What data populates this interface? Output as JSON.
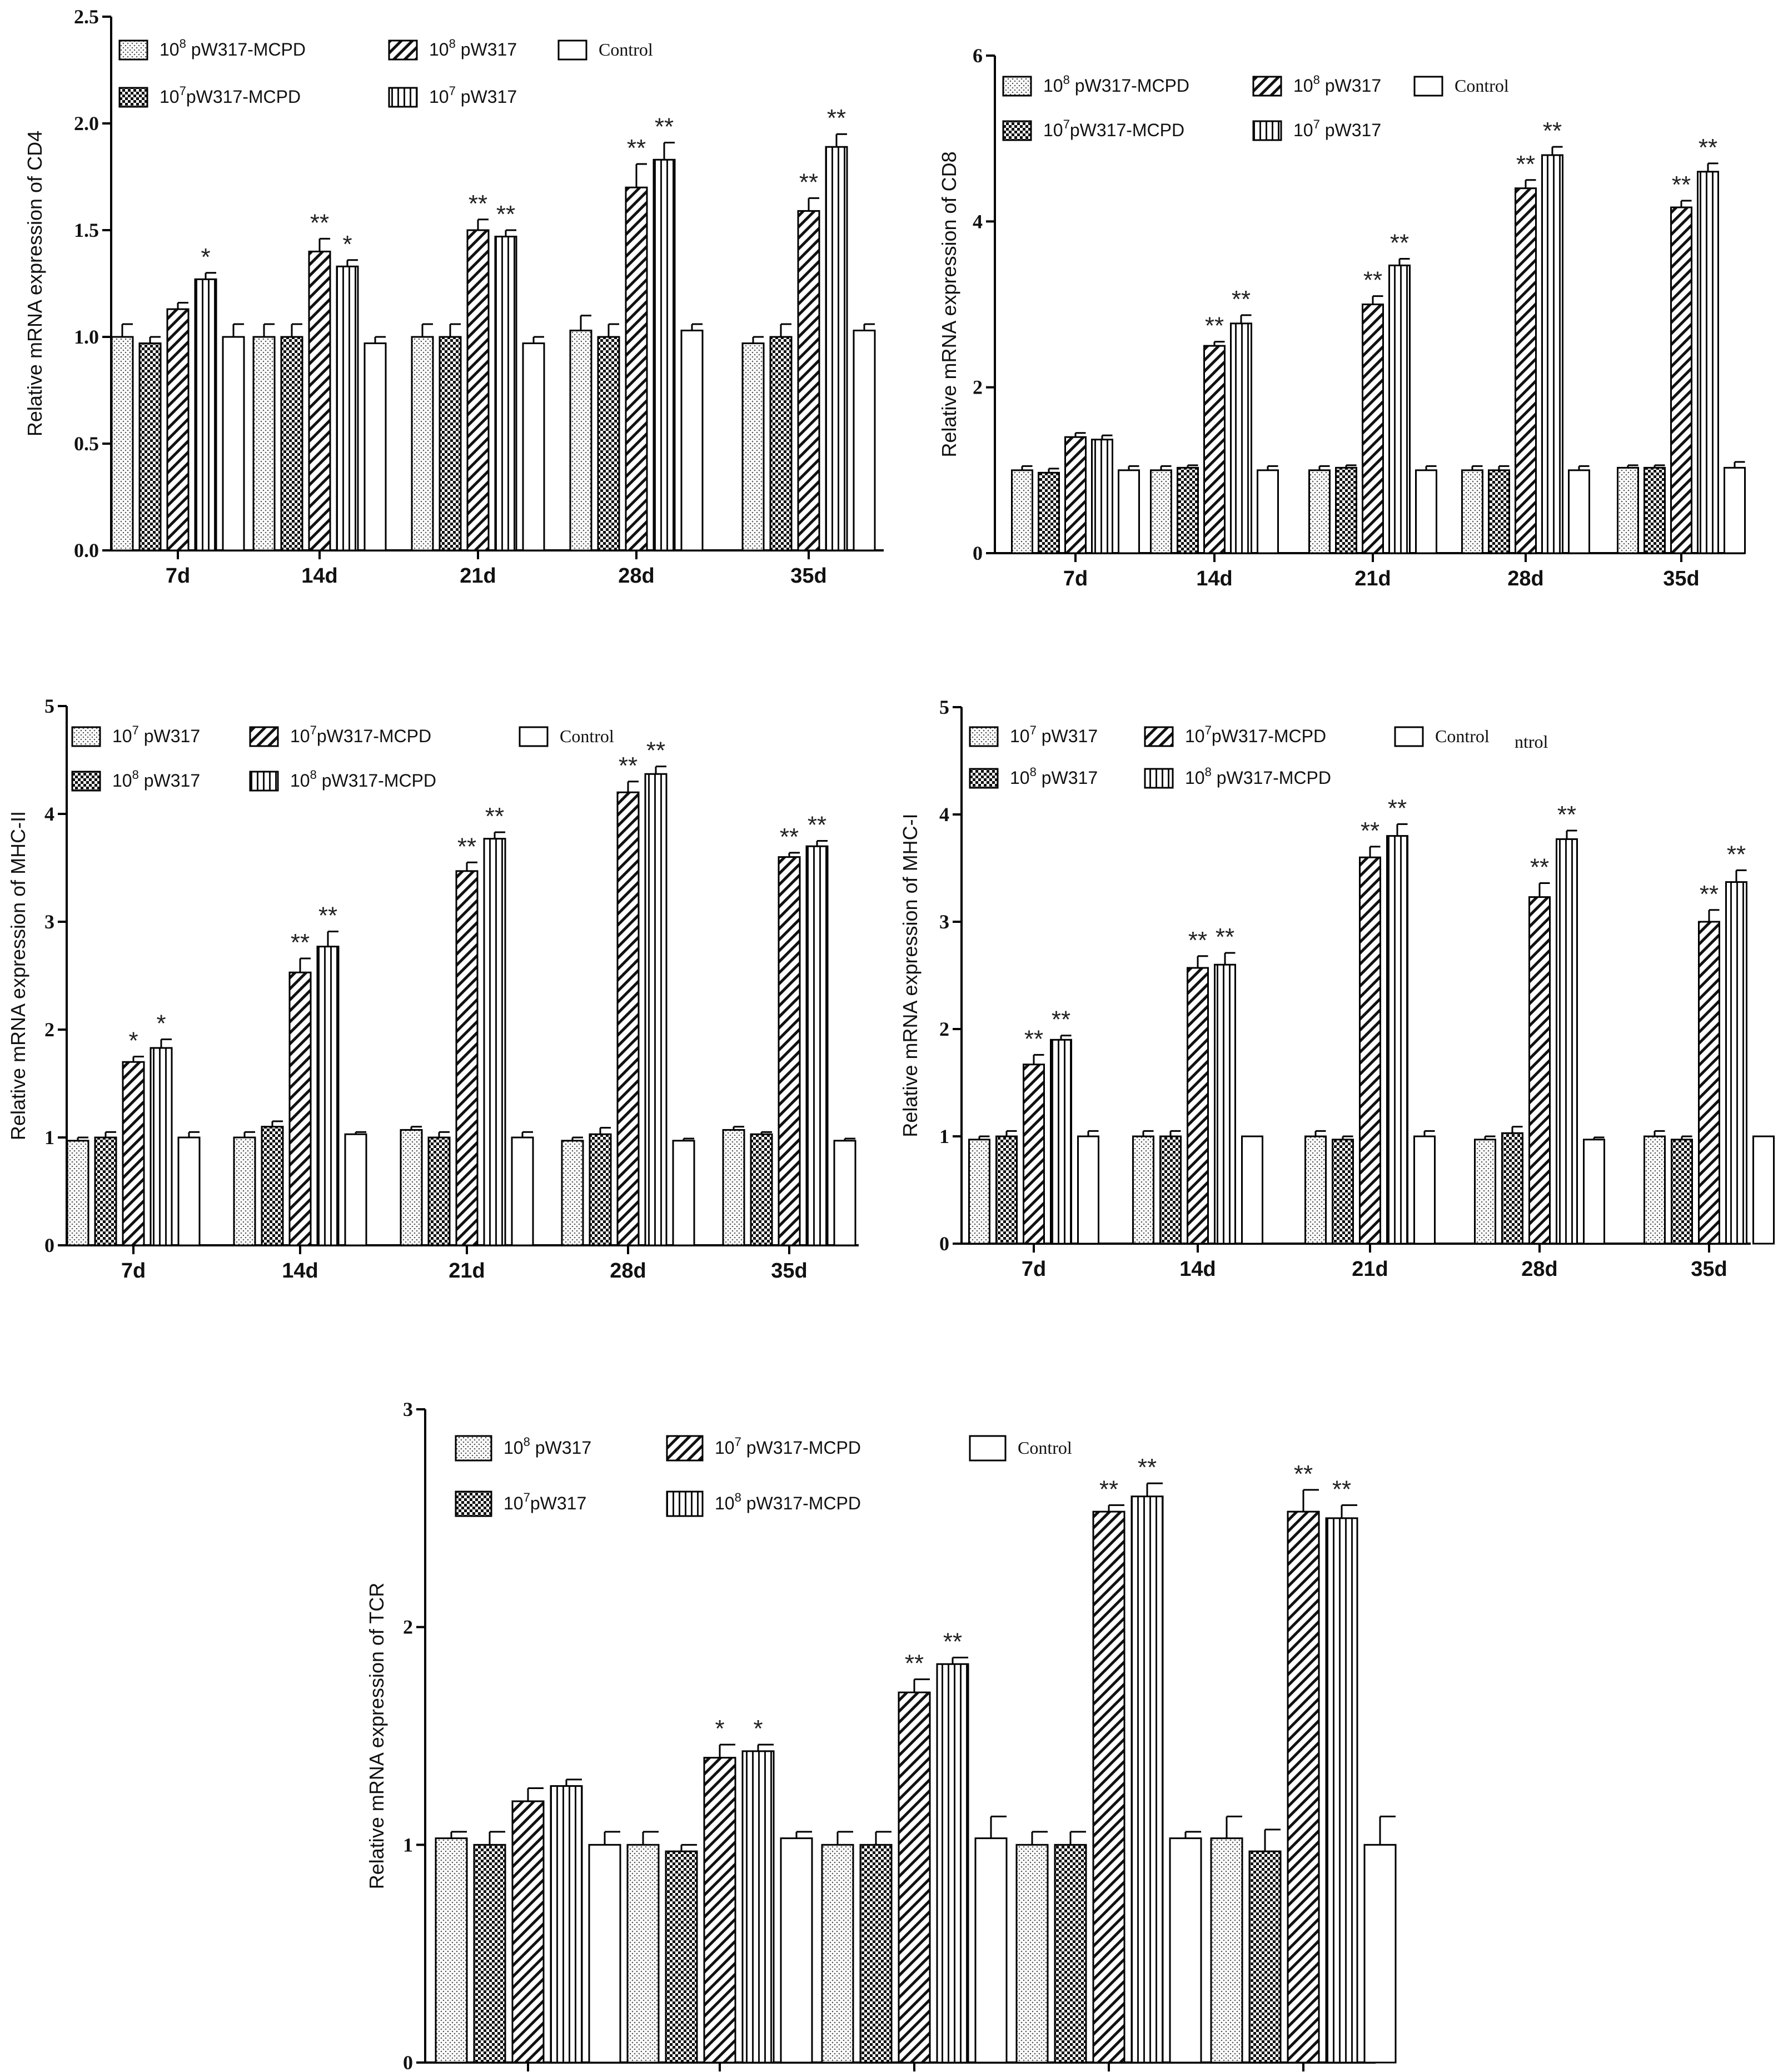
{
  "chart_data": [
    {
      "type": "bar",
      "id": "cd4",
      "ylabel": "Relative mRNA expression of CD4",
      "ylim": [
        0,
        2.5
      ],
      "yticks": [
        "0.0",
        "0.5",
        "1.0",
        "1.5",
        "2.0",
        "2.5"
      ],
      "categories": [
        "7d",
        "14d",
        "21d",
        "28d",
        "35d"
      ],
      "legend": [
        {
          "pre": "10",
          "sup": "8",
          "post": " pW317-MCPD",
          "pattern": "dots"
        },
        {
          "pre": "10",
          "sup": "7",
          "post": "pW317-MCPD",
          "pattern": "check"
        },
        {
          "pre": "10",
          "sup": "8",
          "post": " pW317",
          "pattern": "diag"
        },
        {
          "pre": "10",
          "sup": "7",
          "post": " pW317",
          "pattern": "vert"
        },
        {
          "pre": "Control",
          "sup": "",
          "post": "",
          "pattern": "plain",
          "serif": true
        }
      ],
      "series": [
        {
          "name": "10^8 pW317-MCPD",
          "values": [
            1.0,
            1.0,
            1.0,
            1.03,
            0.97
          ],
          "errors": [
            0.06,
            0.06,
            0.06,
            0.07,
            0.03
          ],
          "sig": [
            "",
            "",
            "",
            "",
            ""
          ]
        },
        {
          "name": "10^7 pW317-MCPD",
          "values": [
            0.97,
            1.0,
            1.0,
            1.0,
            1.0
          ],
          "errors": [
            0.03,
            0.06,
            0.06,
            0.06,
            0.06
          ],
          "sig": [
            "",
            "",
            "",
            "",
            ""
          ]
        },
        {
          "name": "10^8 pW317",
          "values": [
            1.13,
            1.4,
            1.5,
            1.7,
            1.59
          ],
          "errors": [
            0.03,
            0.06,
            0.05,
            0.11,
            0.06
          ],
          "sig": [
            "",
            "**",
            "**",
            "**",
            "**"
          ]
        },
        {
          "name": "10^7 pW317",
          "values": [
            1.27,
            1.33,
            1.47,
            1.83,
            1.89
          ],
          "errors": [
            0.03,
            0.03,
            0.03,
            0.08,
            0.06
          ],
          "sig": [
            "*",
            "*",
            "**",
            "**",
            "**"
          ]
        },
        {
          "name": "Control",
          "values": [
            1.0,
            0.97,
            0.97,
            1.03,
            1.03
          ],
          "errors": [
            0.06,
            0.03,
            0.03,
            0.03,
            0.03
          ],
          "sig": [
            "",
            "",
            "",
            "",
            ""
          ]
        }
      ]
    },
    {
      "type": "bar",
      "id": "cd8",
      "ylabel": "Relative mRNA expression of CD8",
      "ylim": [
        0,
        6
      ],
      "yticks": [
        "0",
        "2",
        "4",
        "6"
      ],
      "categories": [
        "7d",
        "14d",
        "21d",
        "28d",
        "35d"
      ],
      "legend": [
        {
          "pre": "10",
          "sup": "8",
          "post": " pW317-MCPD",
          "pattern": "dots"
        },
        {
          "pre": "10",
          "sup": "7",
          "post": "pW317-MCPD",
          "pattern": "check"
        },
        {
          "pre": "10",
          "sup": "8",
          "post": " pW317",
          "pattern": "diag"
        },
        {
          "pre": "10",
          "sup": "7",
          "post": " pW317",
          "pattern": "vert"
        },
        {
          "pre": "Control",
          "sup": "",
          "post": "",
          "pattern": "plain",
          "serif": true
        }
      ],
      "series": [
        {
          "name": "10^8 pW317-MCPD",
          "values": [
            1.0,
            1.0,
            1.0,
            1.0,
            1.03
          ],
          "errors": [
            0.05,
            0.05,
            0.05,
            0.05,
            0.03
          ],
          "sig": [
            "",
            "",
            "",
            "",
            ""
          ]
        },
        {
          "name": "10^7 pW317-MCPD",
          "values": [
            0.97,
            1.03,
            1.03,
            1.0,
            1.03
          ],
          "errors": [
            0.05,
            0.03,
            0.03,
            0.05,
            0.03
          ],
          "sig": [
            "",
            "",
            "",
            "",
            ""
          ]
        },
        {
          "name": "10^8 pW317",
          "values": [
            1.4,
            2.5,
            3.0,
            4.4,
            4.17
          ],
          "errors": [
            0.05,
            0.05,
            0.1,
            0.1,
            0.08
          ],
          "sig": [
            "",
            "**",
            "**",
            "**",
            "**"
          ]
        },
        {
          "name": "10^7 pW317",
          "values": [
            1.37,
            2.77,
            3.47,
            4.8,
            4.6
          ],
          "errors": [
            0.05,
            0.1,
            0.08,
            0.1,
            0.1
          ],
          "sig": [
            "",
            "**",
            "**",
            "**",
            "**"
          ]
        },
        {
          "name": "Control",
          "values": [
            1.0,
            1.0,
            1.0,
            1.0,
            1.03
          ],
          "errors": [
            0.05,
            0.05,
            0.05,
            0.05,
            0.07
          ],
          "sig": [
            "",
            "",
            "",
            "",
            ""
          ]
        }
      ]
    },
    {
      "type": "bar",
      "id": "mhc2",
      "ylabel": "Relative mRNA expression of MHC-II",
      "ylim": [
        0,
        5
      ],
      "yticks": [
        "0",
        "1",
        "2",
        "3",
        "4",
        "5"
      ],
      "categories": [
        "7d",
        "14d",
        "21d",
        "28d",
        "35d"
      ],
      "legend": [
        {
          "pre": "10",
          "sup": "7",
          "post": " pW317",
          "pattern": "dots"
        },
        {
          "pre": "10",
          "sup": "8",
          "post": " pW317",
          "pattern": "check"
        },
        {
          "pre": "10",
          "sup": "7",
          "post": "pW317-MCPD",
          "pattern": "diag"
        },
        {
          "pre": "10",
          "sup": "8",
          "post": " pW317-MCPD",
          "pattern": "vert"
        },
        {
          "pre": "Control",
          "sup": "",
          "post": "",
          "pattern": "plain",
          "serif": true
        }
      ],
      "series": [
        {
          "name": "10^7 pW317",
          "values": [
            0.97,
            1.0,
            1.07,
            0.97,
            1.07
          ],
          "errors": [
            0.03,
            0.05,
            0.03,
            0.03,
            0.03
          ],
          "sig": [
            "",
            "",
            "",
            "",
            ""
          ]
        },
        {
          "name": "10^8 pW317",
          "values": [
            1.0,
            1.1,
            1.0,
            1.03,
            1.03
          ],
          "errors": [
            0.05,
            0.05,
            0.05,
            0.06,
            0.02
          ],
          "sig": [
            "",
            "",
            "",
            "",
            ""
          ]
        },
        {
          "name": "10^7pW317-MCPD",
          "values": [
            1.7,
            2.53,
            3.47,
            4.2,
            3.6
          ],
          "errors": [
            0.05,
            0.13,
            0.08,
            0.1,
            0.04
          ],
          "sig": [
            "*",
            "**",
            "**",
            "**",
            "**"
          ]
        },
        {
          "name": "10^8 pW317-MCPD",
          "values": [
            1.83,
            2.77,
            3.77,
            4.37,
            3.7
          ],
          "errors": [
            0.08,
            0.14,
            0.06,
            0.07,
            0.05
          ],
          "sig": [
            "*",
            "**",
            "**",
            "**",
            "**"
          ]
        },
        {
          "name": "Control",
          "values": [
            1.0,
            1.03,
            1.0,
            0.97,
            0.97
          ],
          "errors": [
            0.05,
            0.02,
            0.05,
            0.02,
            0.02
          ],
          "sig": [
            "",
            "",
            "",
            "",
            ""
          ]
        }
      ]
    },
    {
      "type": "bar",
      "id": "mhc1",
      "ylabel": "Relative mRNA expression of MHC-I",
      "ylim": [
        0,
        5
      ],
      "yticks": [
        "0",
        "1",
        "2",
        "3",
        "4",
        "5"
      ],
      "categories": [
        "7d",
        "14d",
        "21d",
        "28d",
        "35d"
      ],
      "extra_label": "ntrol",
      "legend": [
        {
          "pre": "10",
          "sup": "7",
          "post": " pW317",
          "pattern": "dots"
        },
        {
          "pre": "10",
          "sup": "8",
          "post": " pW317",
          "pattern": "check"
        },
        {
          "pre": "10",
          "sup": "7",
          "post": "pW317-MCPD",
          "pattern": "diag"
        },
        {
          "pre": "10",
          "sup": "8",
          "post": " pW317-MCPD",
          "pattern": "vert"
        },
        {
          "pre": "Control",
          "sup": "",
          "post": "",
          "pattern": "plain",
          "serif": true
        }
      ],
      "series": [
        {
          "name": "10^7 pW317",
          "values": [
            0.97,
            1.0,
            1.0,
            0.97,
            1.0
          ],
          "errors": [
            0.03,
            0.05,
            0.05,
            0.03,
            0.05
          ],
          "sig": [
            "",
            "",
            "",
            "",
            ""
          ]
        },
        {
          "name": "10^8 pW317",
          "values": [
            1.0,
            1.0,
            0.97,
            1.03,
            0.97
          ],
          "errors": [
            0.05,
            0.05,
            0.03,
            0.06,
            0.03
          ],
          "sig": [
            "",
            "",
            "",
            "",
            ""
          ]
        },
        {
          "name": "10^7pW317-MCPD",
          "values": [
            1.67,
            2.57,
            3.6,
            3.23,
            3.0
          ],
          "errors": [
            0.09,
            0.11,
            0.1,
            0.13,
            0.11
          ],
          "sig": [
            "**",
            "**",
            "**",
            "**",
            "**"
          ]
        },
        {
          "name": "10^8 pW317-MCPD",
          "values": [
            1.9,
            2.6,
            3.8,
            3.77,
            3.37
          ],
          "errors": [
            0.04,
            0.11,
            0.11,
            0.08,
            0.11
          ],
          "sig": [
            "**",
            "**",
            "**",
            "**",
            "**"
          ]
        },
        {
          "name": "Control",
          "values": [
            1.0,
            1.0,
            1.0,
            0.97,
            1.0
          ],
          "errors": [
            0.05,
            0.0,
            0.05,
            0.02,
            0.0
          ],
          "sig": [
            "",
            "",
            "",
            "",
            ""
          ]
        }
      ]
    },
    {
      "type": "bar",
      "id": "tcr",
      "ylabel": "Relative mRNA expression of TCR",
      "ylim": [
        0,
        3
      ],
      "yticks": [
        "0",
        "1",
        "2",
        "3"
      ],
      "categories": [
        "",
        "",
        "",
        "",
        ""
      ],
      "legend": [
        {
          "pre": "10",
          "sup": "8",
          "post": " pW317",
          "pattern": "dots"
        },
        {
          "pre": "10",
          "sup": "7",
          "post": "pW317",
          "pattern": "check"
        },
        {
          "pre": "10",
          "sup": "7",
          "post": " pW317-MCPD",
          "pattern": "diag"
        },
        {
          "pre": "10",
          "sup": "8",
          "post": " pW317-MCPD",
          "pattern": "vert"
        },
        {
          "pre": "Control",
          "sup": "",
          "post": "",
          "pattern": "plain",
          "serif": true
        }
      ],
      "series": [
        {
          "name": "10^8 pW317",
          "values": [
            1.03,
            1.0,
            1.0,
            1.0,
            1.03
          ],
          "errors": [
            0.03,
            0.06,
            0.06,
            0.06,
            0.1
          ],
          "sig": [
            "",
            "",
            "",
            "",
            ""
          ]
        },
        {
          "name": "10^7pW317",
          "values": [
            1.0,
            0.97,
            1.0,
            1.0,
            0.97
          ],
          "errors": [
            0.06,
            0.03,
            0.06,
            0.06,
            0.1
          ],
          "sig": [
            "",
            "",
            "",
            "",
            ""
          ]
        },
        {
          "name": "10^7 pW317-MCPD",
          "values": [
            1.2,
            1.4,
            1.7,
            2.53,
            2.53
          ],
          "errors": [
            0.06,
            0.06,
            0.06,
            0.03,
            0.1
          ],
          "sig": [
            "",
            "*",
            "**",
            "**",
            "**"
          ]
        },
        {
          "name": "10^8 pW317-MCPD",
          "values": [
            1.27,
            1.43,
            1.83,
            2.6,
            2.5
          ],
          "errors": [
            0.03,
            0.03,
            0.03,
            0.06,
            0.06
          ],
          "sig": [
            "",
            "*",
            "**",
            "**",
            "**"
          ]
        },
        {
          "name": "Control",
          "values": [
            1.0,
            1.03,
            1.03,
            1.03,
            1.0
          ],
          "errors": [
            0.06,
            0.03,
            0.1,
            0.03,
            0.13
          ],
          "sig": [
            "",
            "",
            "",
            "",
            ""
          ]
        }
      ]
    }
  ]
}
